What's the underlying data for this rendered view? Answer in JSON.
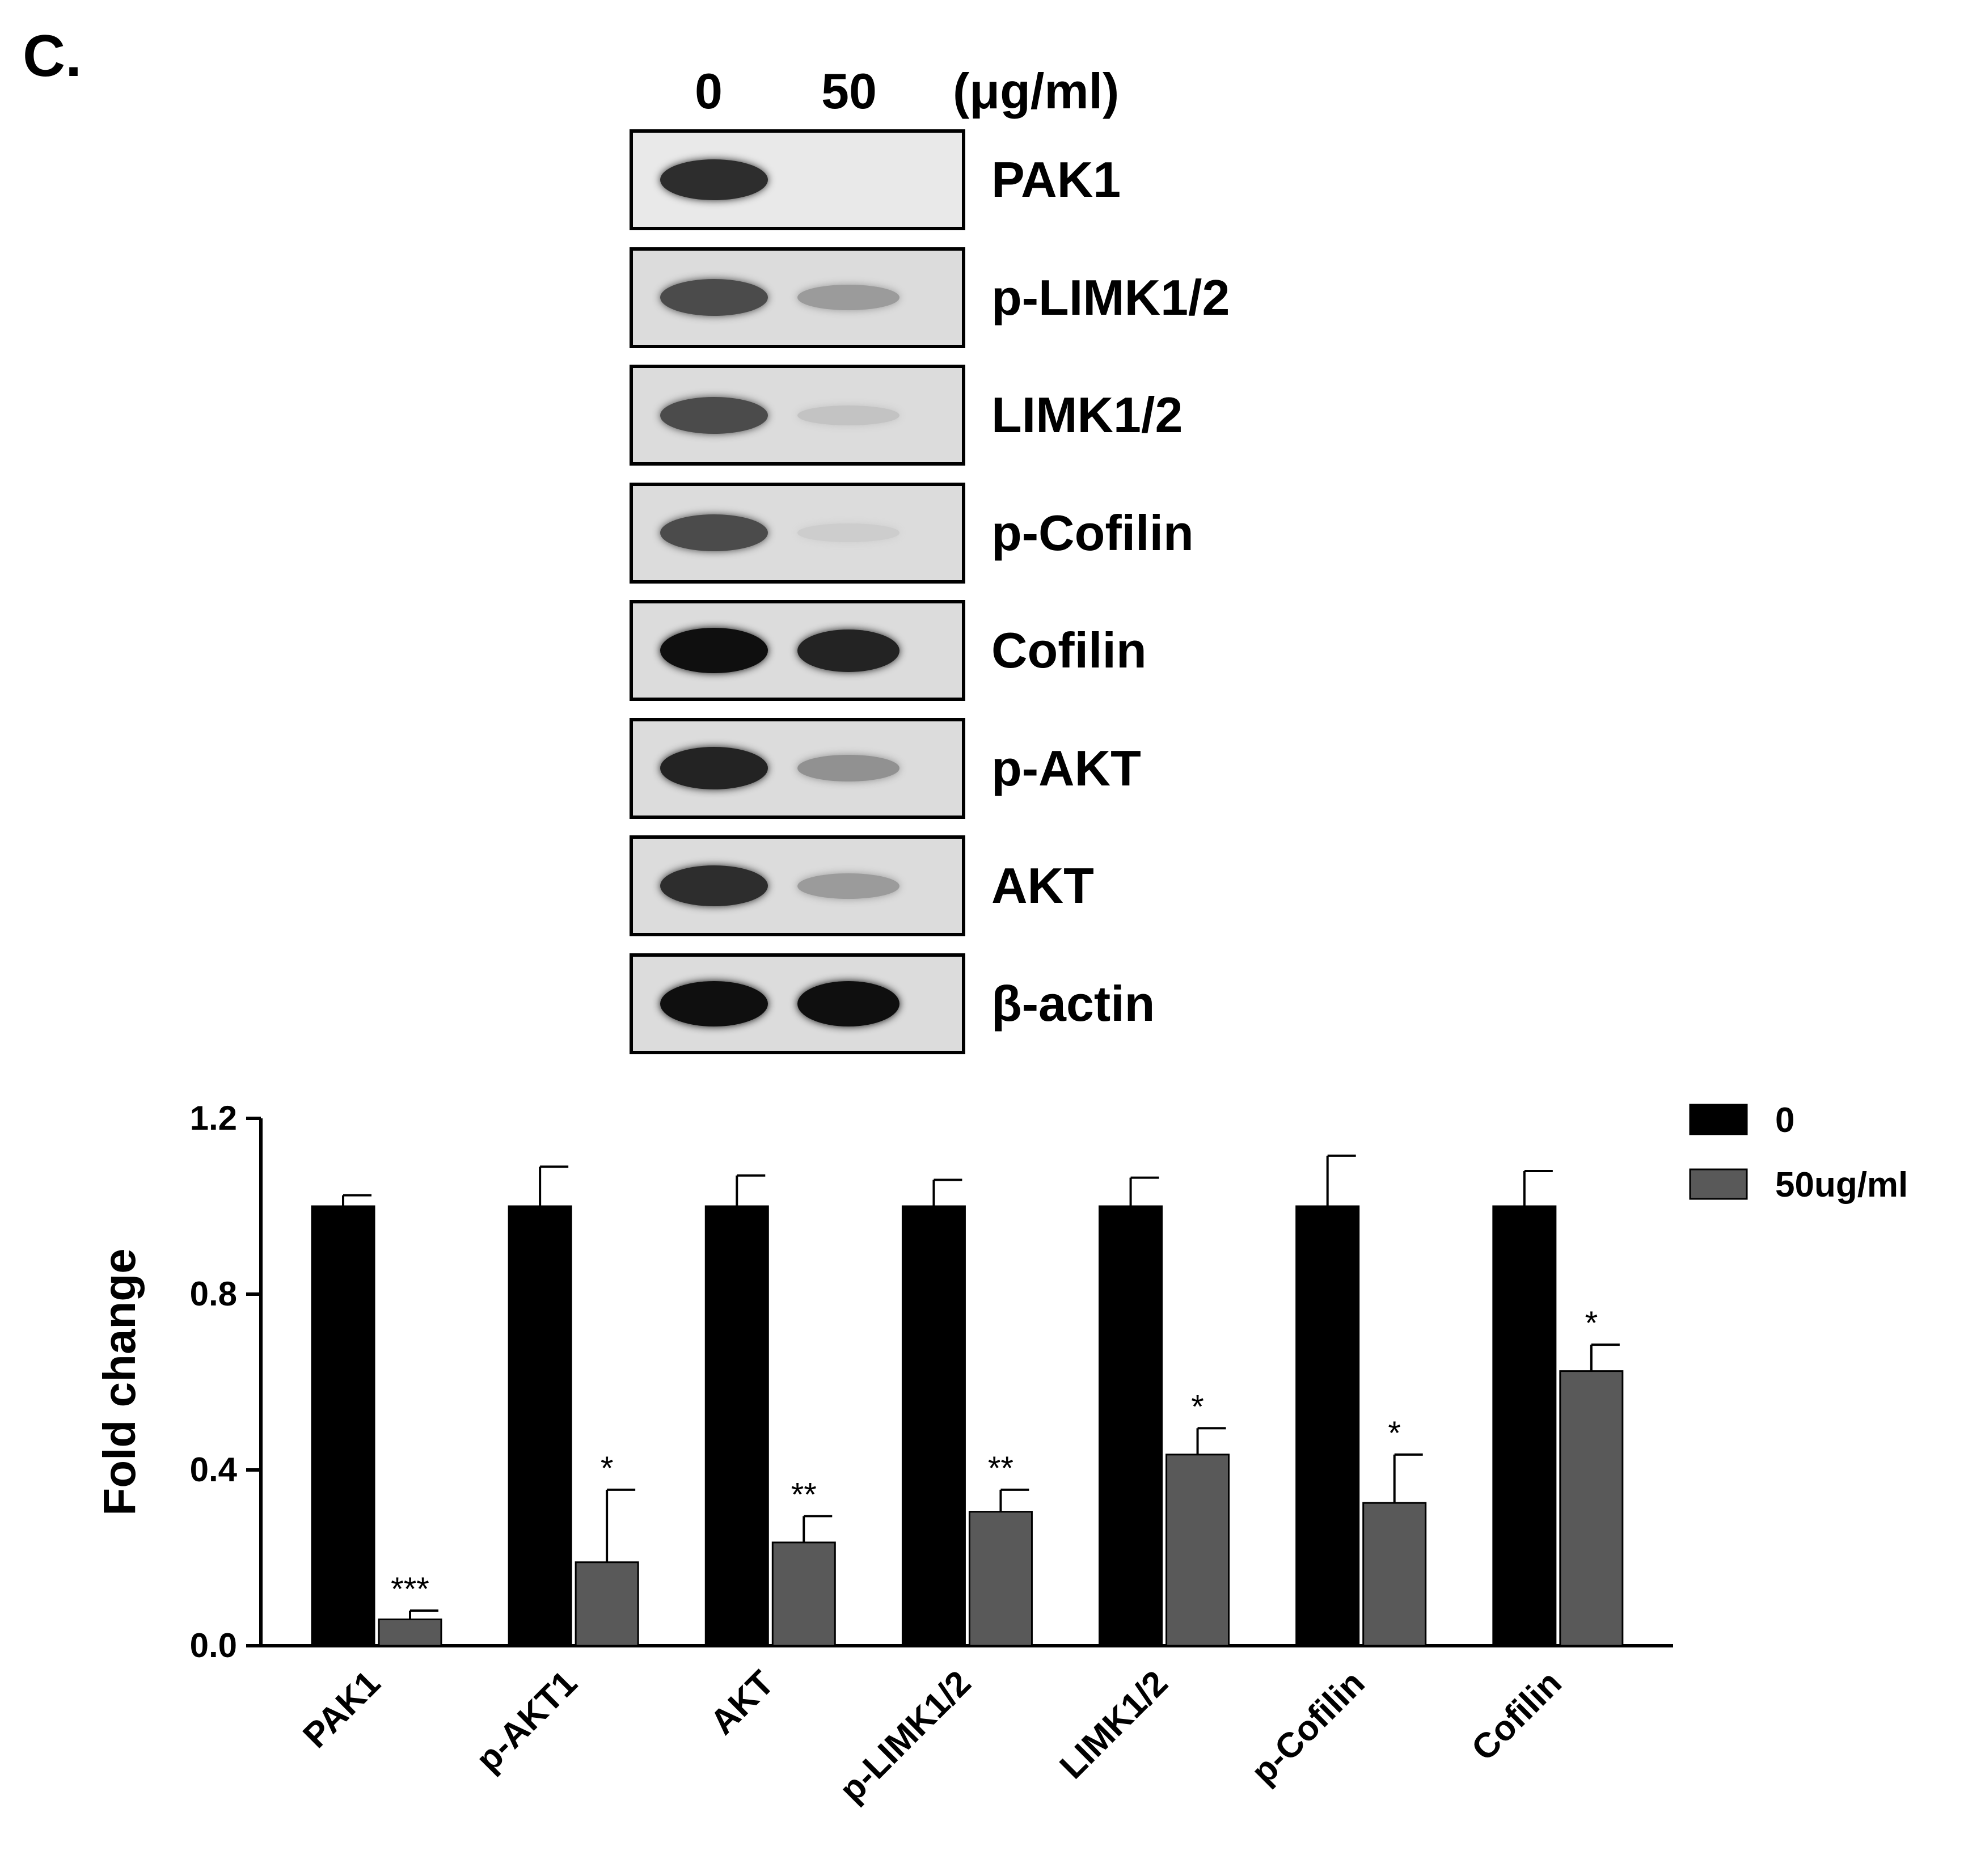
{
  "panel_label": "C.",
  "blot": {
    "lane_labels": [
      "0",
      "50"
    ],
    "unit": "(μg/ml)",
    "rows": [
      {
        "label": "PAK1",
        "bands": [
          0.85,
          0.0
        ]
      },
      {
        "label": "p-LIMK1/2",
        "bands": [
          0.7,
          0.3
        ]
      },
      {
        "label": "LIMK1/2",
        "bands": [
          0.7,
          0.1
        ]
      },
      {
        "label": "p-Cofilin",
        "bands": [
          0.7,
          0.05
        ]
      },
      {
        "label": "Cofilin",
        "bands": [
          1.0,
          0.9
        ]
      },
      {
        "label": "p-AKT",
        "bands": [
          0.9,
          0.35
        ]
      },
      {
        "label": "AKT",
        "bands": [
          0.85,
          0.3
        ]
      },
      {
        "label": "β-actin",
        "bands": [
          1.0,
          1.0
        ]
      }
    ]
  },
  "chart_data": {
    "type": "bar",
    "ylabel": "Fold change",
    "ylim": [
      0,
      1.2
    ],
    "yticks": [
      "0.0",
      "0.4",
      "0.8",
      "1.2"
    ],
    "categories": [
      "PAK1",
      "p-AKT1",
      "AKT",
      "p-LIMK1/2",
      "LIMK1/2",
      "p-Cofilin",
      "Cofilin"
    ],
    "series": [
      {
        "name": "0",
        "color": "#000000",
        "values": [
          1.0,
          1.0,
          1.0,
          1.0,
          1.0,
          1.0,
          1.0
        ],
        "errors": [
          0.025,
          0.09,
          0.07,
          0.06,
          0.065,
          0.115,
          0.08
        ]
      },
      {
        "name": "50ug/ml",
        "color": "#595959",
        "values": [
          0.06,
          0.19,
          0.235,
          0.305,
          0.435,
          0.325,
          0.625
        ],
        "errors": [
          0.02,
          0.165,
          0.06,
          0.05,
          0.06,
          0.11,
          0.06
        ]
      }
    ],
    "significance": [
      "***",
      "*",
      "**",
      "**",
      "*",
      "*",
      "*"
    ],
    "legend_position": "top-right"
  }
}
